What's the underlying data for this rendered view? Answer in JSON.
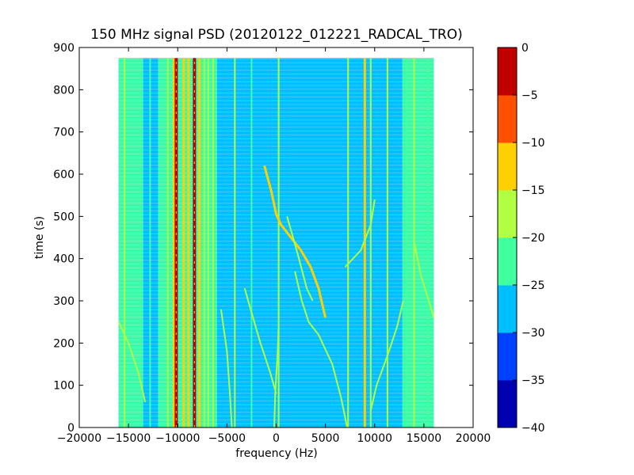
{
  "chart_data": {
    "type": "heatmap",
    "title": "150 MHz signal PSD (20120122_012221_RADCAL_TRO)",
    "xlabel": "frequency (Hz)",
    "ylabel": "time (s)",
    "xlim": [
      -20000,
      20000
    ],
    "ylim": [
      0,
      900
    ],
    "x_ticks": [
      -20000,
      -15000,
      -10000,
      -5000,
      0,
      5000,
      10000,
      15000,
      20000
    ],
    "y_ticks": [
      0,
      100,
      200,
      300,
      400,
      500,
      600,
      700,
      800,
      900
    ],
    "data_extent": {
      "x": [
        -16000,
        16000
      ],
      "y": [
        0,
        875
      ]
    },
    "colorbar": {
      "levels": [
        -40,
        -35,
        -30,
        -25,
        -20,
        -15,
        -10,
        -5,
        0
      ],
      "tick_labels": [
        "-40",
        "-35",
        "-30",
        "-25",
        "-20",
        "-15",
        "-10",
        "-5",
        "0"
      ],
      "colors": [
        "#0000b0",
        "#0040ff",
        "#00bfff",
        "#40ff9f",
        "#b0ff40",
        "#ffd000",
        "#ff5000",
        "#c00000"
      ]
    },
    "background_level": -27.5,
    "bands": [
      {
        "x_range": [
          -16000,
          -13500
        ],
        "level": -22.5
      },
      {
        "x_range": [
          -12000,
          -6000
        ],
        "level": -22.5
      },
      {
        "x_range": [
          12800,
          16000
        ],
        "level": -22.5
      }
    ],
    "vertical_lines": [
      {
        "x": -15400,
        "level": -17.5
      },
      {
        "x": -12800,
        "level": -22.5
      },
      {
        "x": -11000,
        "level": -17.5
      },
      {
        "x": -10400,
        "level": -12.5
      },
      {
        "x": -10150,
        "level": -2.5
      },
      {
        "x": -9400,
        "level": -12.5
      },
      {
        "x": -8900,
        "level": -12.5
      },
      {
        "x": -8300,
        "level": -2.5
      },
      {
        "x": -7800,
        "level": -12.5
      },
      {
        "x": -7300,
        "level": -17.5
      },
      {
        "x": -6900,
        "level": -17.5
      },
      {
        "x": -6400,
        "level": -17.5
      },
      {
        "x": -4200,
        "level": -17.5
      },
      {
        "x": -2500,
        "level": -22.5
      },
      {
        "x": 250,
        "level": -17.5
      },
      {
        "x": 7300,
        "level": -17.5
      },
      {
        "x": 9000,
        "level": -12.5
      },
      {
        "x": 9600,
        "level": -17.5
      },
      {
        "x": 11300,
        "level": -17.5
      },
      {
        "x": 13200,
        "level": -22.5
      },
      {
        "x": 14000,
        "level": -17.5
      },
      {
        "x": 15400,
        "level": -22.5
      }
    ],
    "traces": [
      {
        "level": -12.5,
        "points": [
          [
            -1200,
            620
          ],
          [
            -500,
            560
          ],
          [
            0,
            505
          ],
          [
            500,
            480
          ],
          [
            1500,
            450
          ],
          [
            2500,
            420
          ],
          [
            3500,
            380
          ],
          [
            4300,
            330
          ],
          [
            4700,
            290
          ],
          [
            5000,
            260
          ]
        ]
      },
      {
        "level": -17.5,
        "points": [
          [
            -16000,
            250
          ],
          [
            -15000,
            200
          ],
          [
            -14000,
            130
          ],
          [
            -13300,
            60
          ]
        ]
      },
      {
        "level": -17.5,
        "points": [
          [
            -3200,
            330
          ],
          [
            -2600,
            280
          ],
          [
            -1600,
            200
          ],
          [
            -600,
            130
          ],
          [
            0,
            80
          ]
        ]
      },
      {
        "level": -17.5,
        "points": [
          [
            -200,
            0
          ],
          [
            -100,
            80
          ],
          [
            150,
            180
          ],
          [
            250,
            240
          ]
        ]
      },
      {
        "level": -17.5,
        "points": [
          [
            1900,
            370
          ],
          [
            2600,
            300
          ],
          [
            3300,
            250
          ],
          [
            4300,
            220
          ],
          [
            5700,
            150
          ],
          [
            6600,
            70
          ],
          [
            7200,
            0
          ]
        ]
      },
      {
        "level": -17.5,
        "points": [
          [
            1100,
            500
          ],
          [
            2200,
            410
          ],
          [
            3100,
            330
          ],
          [
            3700,
            300
          ]
        ]
      },
      {
        "level": -17.5,
        "points": [
          [
            10000,
            540
          ],
          [
            9600,
            480
          ],
          [
            8600,
            420
          ],
          [
            7000,
            380
          ]
        ]
      },
      {
        "level": -17.5,
        "points": [
          [
            12900,
            300
          ],
          [
            12300,
            240
          ],
          [
            11300,
            170
          ],
          [
            10200,
            100
          ],
          [
            9600,
            40
          ]
        ]
      },
      {
        "level": -17.5,
        "points": [
          [
            -5600,
            280
          ],
          [
            -5000,
            180
          ],
          [
            -4700,
            80
          ],
          [
            -4500,
            0
          ]
        ]
      },
      {
        "level": -17.5,
        "points": [
          [
            16000,
            260
          ],
          [
            15500,
            300
          ],
          [
            14700,
            360
          ],
          [
            14000,
            440
          ]
        ]
      }
    ]
  }
}
